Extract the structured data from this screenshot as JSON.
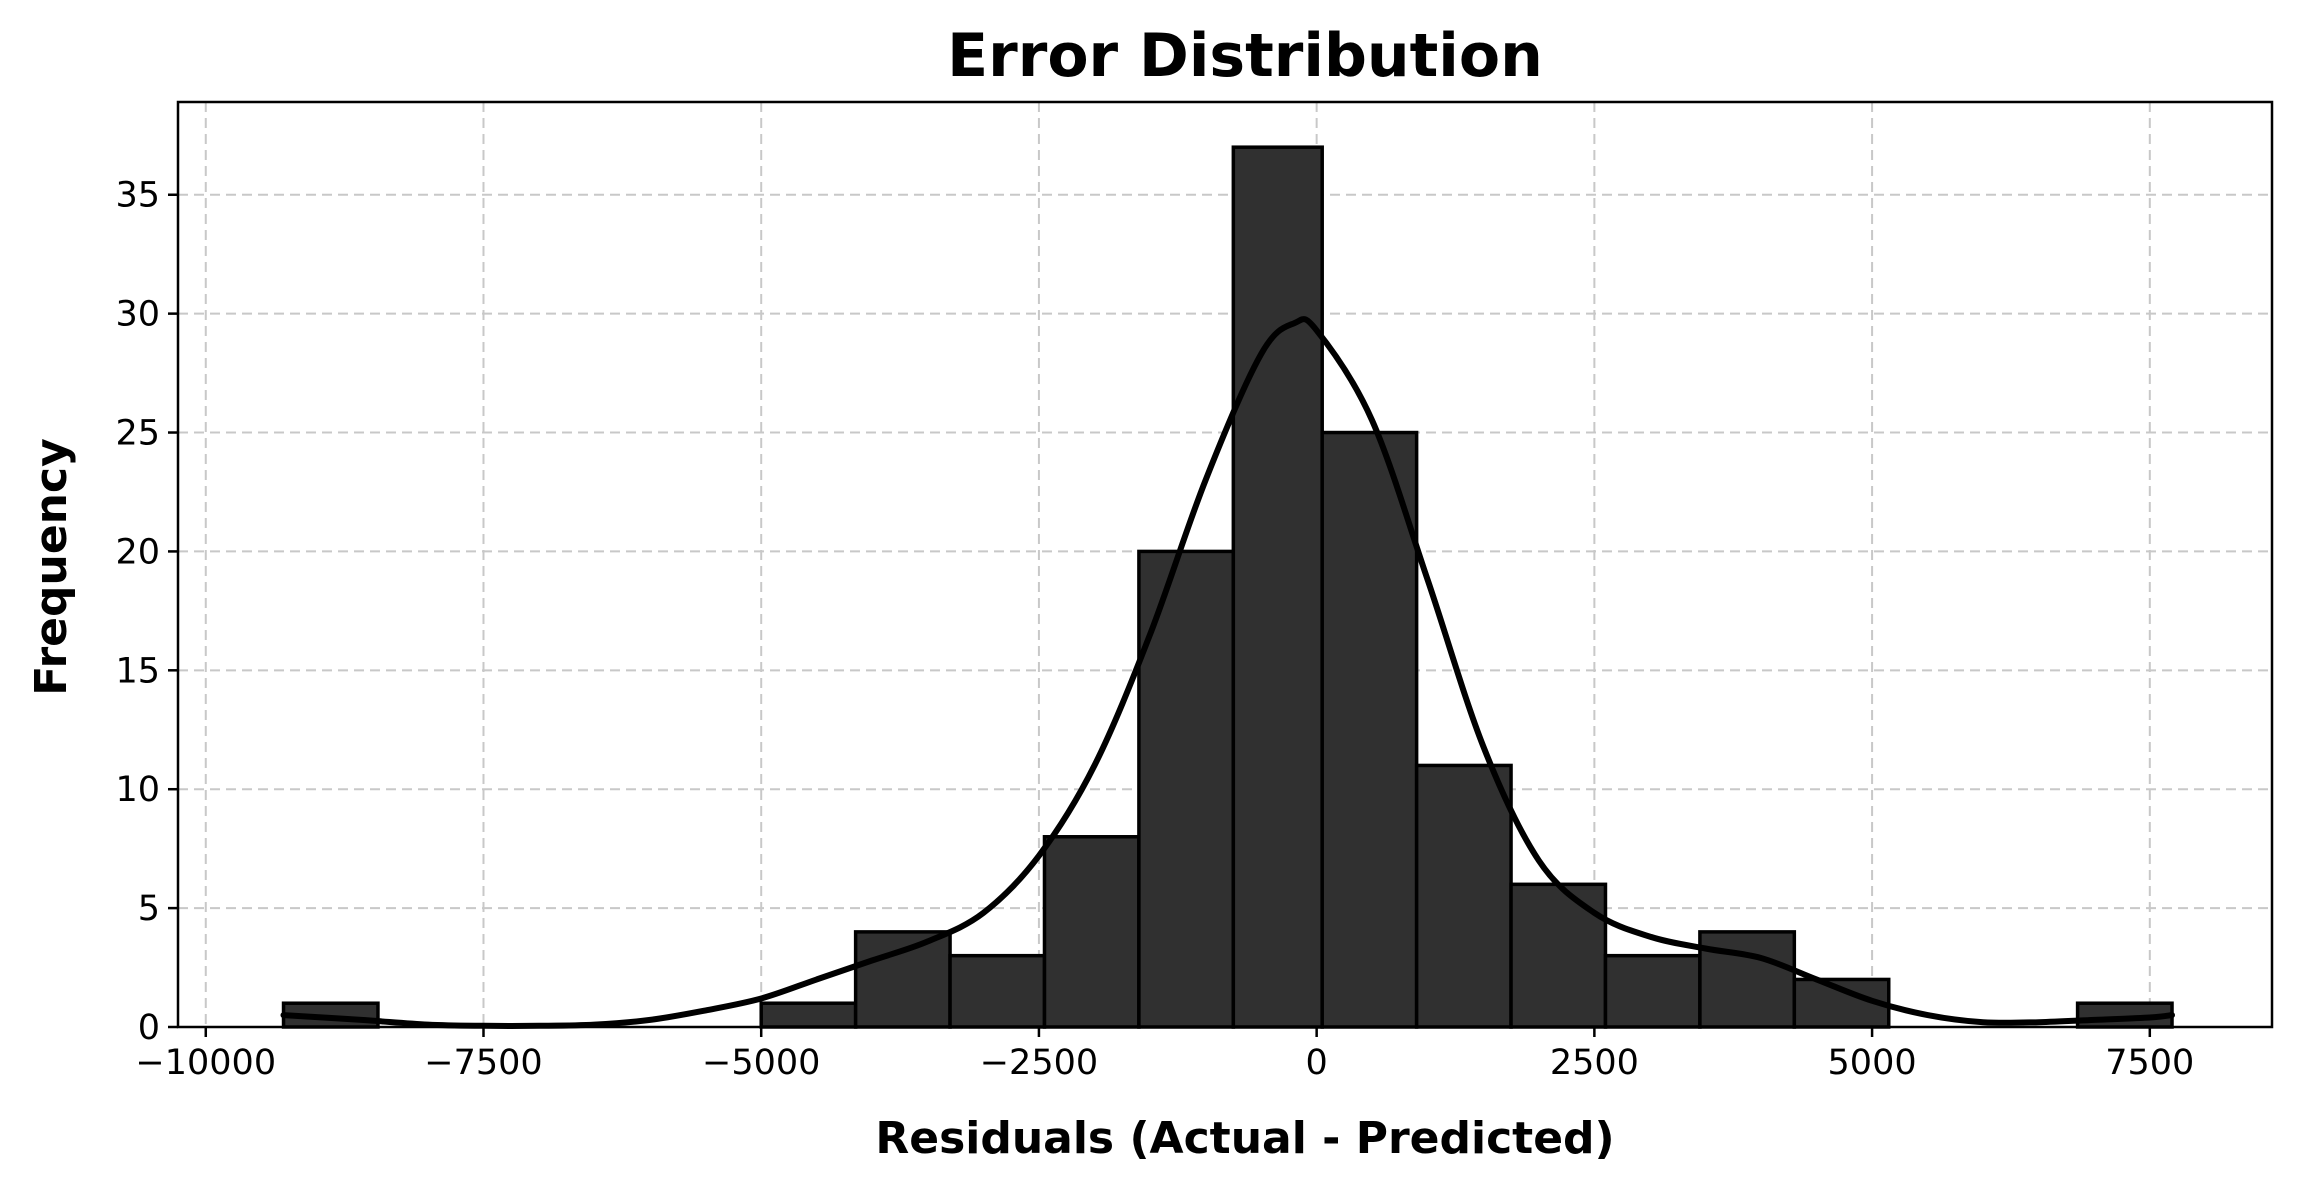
{
  "chart_data": {
    "type": "bar",
    "title": "Error Distribution",
    "xlabel": "Residuals (Actual - Predicted)",
    "ylabel": "Frequency",
    "xlim": [
      -10250,
      8600
    ],
    "ylim": [
      0,
      38.9
    ],
    "xticks": [
      -10000,
      -7500,
      -5000,
      -2500,
      0,
      2500,
      5000,
      7500
    ],
    "xtick_labels": [
      "−10000",
      "−7500",
      "−5000",
      "−2500",
      "0",
      "2500",
      "5000",
      "7500"
    ],
    "yticks": [
      0,
      5,
      10,
      15,
      20,
      25,
      30,
      35
    ],
    "ytick_labels": [
      "0",
      "5",
      "10",
      "15",
      "20",
      "25",
      "30",
      "35"
    ],
    "grid": true,
    "bins": [
      {
        "x0": -9300,
        "x1": -8450,
        "count": 1
      },
      {
        "x0": -5000,
        "x1": -4150,
        "count": 1
      },
      {
        "x0": -4150,
        "x1": -3300,
        "count": 4
      },
      {
        "x0": -3300,
        "x1": -2450,
        "count": 3
      },
      {
        "x0": -2450,
        "x1": -1600,
        "count": 8
      },
      {
        "x0": -1600,
        "x1": -750,
        "count": 20
      },
      {
        "x0": -750,
        "x1": 50,
        "count": 37
      },
      {
        "x0": 50,
        "x1": 900,
        "count": 25
      },
      {
        "x0": 900,
        "x1": 1750,
        "count": 11
      },
      {
        "x0": 1750,
        "x1": 2600,
        "count": 6
      },
      {
        "x0": 2600,
        "x1": 3450,
        "count": 3
      },
      {
        "x0": 3450,
        "x1": 4300,
        "count": 4
      },
      {
        "x0": 4300,
        "x1": 5150,
        "count": 2
      },
      {
        "x0": 6850,
        "x1": 7700,
        "count": 1
      }
    ],
    "kde": {
      "x": [
        -9300,
        -8600,
        -8000,
        -7500,
        -7000,
        -6500,
        -6000,
        -5500,
        -5000,
        -4500,
        -4000,
        -3500,
        -3000,
        -2500,
        -2000,
        -1500,
        -1000,
        -500,
        -200,
        0,
        500,
        1000,
        1500,
        2000,
        2500,
        3000,
        3500,
        4000,
        4500,
        5000,
        5500,
        6000,
        6500,
        7000,
        7500,
        7700
      ],
      "y": [
        0.5,
        0.3,
        0.1,
        0.05,
        0.05,
        0.1,
        0.3,
        0.7,
        1.2,
        2.0,
        2.8,
        3.6,
        4.8,
        7.2,
        11.0,
        16.5,
        23.0,
        28.3,
        29.6,
        29.3,
        25.5,
        18.8,
        11.8,
        7.0,
        4.8,
        3.8,
        3.3,
        2.9,
        2.0,
        1.1,
        0.5,
        0.2,
        0.2,
        0.3,
        0.4,
        0.5
      ]
    }
  }
}
